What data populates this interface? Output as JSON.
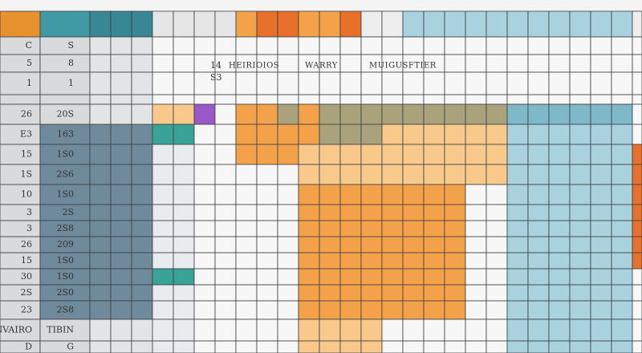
{
  "headers": [
    "14",
    "S3",
    "HEIRIOIOS",
    "WARRY",
    "MUIGUSFTIER"
  ],
  "rows": [
    [
      "C",
      "S"
    ],
    [
      "5",
      "8"
    ],
    [
      "1",
      "1"
    ],
    [
      "26",
      "20S"
    ],
    [
      "E3",
      "163"
    ],
    [
      "15",
      "1S0"
    ],
    [
      "1S",
      "2S6"
    ],
    [
      "10",
      "1S0"
    ],
    [
      "3",
      "2S"
    ],
    [
      "3",
      "2S8"
    ],
    [
      "26",
      "209"
    ],
    [
      "15",
      "1S0"
    ],
    [
      "30",
      "1S0"
    ],
    [
      "2S",
      "2S0"
    ],
    [
      "23",
      "2S8"
    ],
    [
      "INVAIRO",
      "TIBIN"
    ],
    [
      "D",
      "G"
    ]
  ]
}
